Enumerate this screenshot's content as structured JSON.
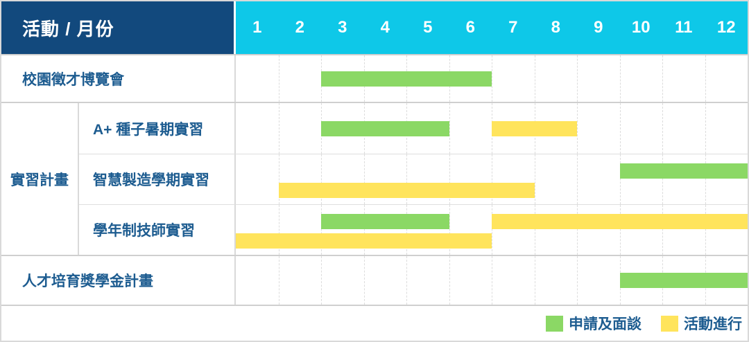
{
  "header": {
    "label": "活動 / 月份"
  },
  "months": [
    "1",
    "2",
    "3",
    "4",
    "5",
    "6",
    "7",
    "8",
    "9",
    "10",
    "11",
    "12"
  ],
  "colors": {
    "header_bg": "#12497D",
    "months_bg": "#0EC8E8",
    "apply_green": "#8BD865",
    "ongoing_yellow": "#FFE45C",
    "label_text": "#1D5C90"
  },
  "rows": [
    {
      "type": "simple",
      "label": "校園徵才博覽會",
      "lanes": [
        [
          {
            "kind": "apply",
            "start": 3,
            "end": 6
          }
        ]
      ]
    },
    {
      "type": "group",
      "label": "實習計畫",
      "children": [
        {
          "label": "A+ 種子暑期實習",
          "lanes": [
            [
              {
                "kind": "apply",
                "start": 3,
                "end": 5
              },
              {
                "kind": "ongoing",
                "start": 7,
                "end": 8
              }
            ]
          ]
        },
        {
          "label": "智慧製造學期實習",
          "lanes": [
            [
              {
                "kind": "apply",
                "start": 10,
                "end": 12
              }
            ],
            [
              {
                "kind": "ongoing",
                "start": 2,
                "end": 7
              }
            ]
          ]
        },
        {
          "label": "學年制技師實習",
          "lanes": [
            [
              {
                "kind": "apply",
                "start": 3,
                "end": 5
              },
              {
                "kind": "ongoing",
                "start": 7,
                "end": 12
              }
            ],
            [
              {
                "kind": "ongoing",
                "start": 1,
                "end": 6
              }
            ]
          ]
        }
      ]
    },
    {
      "type": "simple",
      "label": "人才培育獎學金計畫",
      "lanes": [
        [
          {
            "kind": "apply",
            "start": 10,
            "end": 12
          }
        ]
      ]
    }
  ],
  "legend": [
    {
      "kind": "apply",
      "label": "申請及面談"
    },
    {
      "kind": "ongoing",
      "label": "活動進行"
    }
  ],
  "chart_data": {
    "type": "table",
    "subtype": "gantt",
    "title": "活動 / 月份",
    "x_axis": {
      "label": "月份",
      "ticks": [
        1,
        2,
        3,
        4,
        5,
        6,
        7,
        8,
        9,
        10,
        11,
        12
      ],
      "range": [
        1,
        12
      ]
    },
    "grid": true,
    "legend_position": "bottom-right",
    "legend": [
      {
        "label": "申請及面談",
        "color": "#8BD865"
      },
      {
        "label": "活動進行",
        "color": "#FFE45C"
      }
    ],
    "tasks": [
      {
        "group": null,
        "name": "校園徵才博覽會",
        "apply_months": [
          [
            3,
            6
          ]
        ],
        "ongoing_months": []
      },
      {
        "group": "實習計畫",
        "name": "A+ 種子暑期實習",
        "apply_months": [
          [
            3,
            5
          ]
        ],
        "ongoing_months": [
          [
            7,
            8
          ]
        ]
      },
      {
        "group": "實習計畫",
        "name": "智慧製造學期實習",
        "apply_months": [
          [
            10,
            12
          ]
        ],
        "ongoing_months": [
          [
            2,
            7
          ]
        ]
      },
      {
        "group": "實習計畫",
        "name": "學年制技師實習",
        "apply_months": [
          [
            3,
            5
          ]
        ],
        "ongoing_months": [
          [
            7,
            12
          ],
          [
            1,
            6
          ]
        ]
      },
      {
        "group": null,
        "name": "人才培育獎學金計畫",
        "apply_months": [
          [
            10,
            12
          ]
        ],
        "ongoing_months": []
      }
    ]
  }
}
